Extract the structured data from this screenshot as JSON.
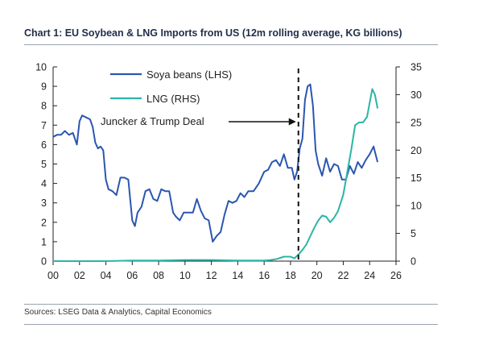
{
  "chart_data": {
    "type": "line",
    "title": "Chart 1: EU Soybean & LNG Imports from US (12m rolling average, KG billions)",
    "source": "Sources: LSEG Data & Analytics, Capital Economics",
    "x_ticks": [
      "00",
      "02",
      "04",
      "06",
      "08",
      "10",
      "12",
      "14",
      "16",
      "18",
      "20",
      "22",
      "24",
      "26"
    ],
    "xlim": [
      2000,
      2026
    ],
    "y_left": {
      "ylim": [
        0,
        10
      ],
      "ticks": [
        "0",
        "1",
        "2",
        "3",
        "4",
        "5",
        "6",
        "7",
        "8",
        "9",
        "10"
      ]
    },
    "y_right": {
      "ylim": [
        0,
        35
      ],
      "ticks": [
        "0",
        "5",
        "10",
        "15",
        "20",
        "25",
        "30",
        "35"
      ]
    },
    "grid": false,
    "legend_position": "top-center",
    "annotation": {
      "text": "Juncker & Trump Deal",
      "x": 2018.6
    },
    "series": [
      {
        "name": "Soya beans (LHS)",
        "axis": "left",
        "color": "#2a56b0",
        "x": [
          2000.0,
          2000.3,
          2000.6,
          2000.9,
          2001.2,
          2001.5,
          2001.8,
          2002.0,
          2002.2,
          2002.5,
          2002.8,
          2003.0,
          2003.2,
          2003.4,
          2003.6,
          2003.8,
          2004.0,
          2004.2,
          2004.5,
          2004.8,
          2005.1,
          2005.4,
          2005.7,
          2006.0,
          2006.2,
          2006.4,
          2006.7,
          2007.0,
          2007.3,
          2007.6,
          2007.9,
          2008.2,
          2008.5,
          2008.8,
          2009.1,
          2009.3,
          2009.6,
          2009.9,
          2010.2,
          2010.6,
          2010.9,
          2011.2,
          2011.5,
          2011.8,
          2012.1,
          2012.4,
          2012.7,
          2013.0,
          2013.3,
          2013.6,
          2013.9,
          2014.2,
          2014.5,
          2014.8,
          2015.2,
          2015.6,
          2016.0,
          2016.3,
          2016.6,
          2016.9,
          2017.2,
          2017.5,
          2017.8,
          2018.1,
          2018.3,
          2018.5,
          2018.7,
          2018.9,
          2019.1,
          2019.3,
          2019.5,
          2019.7,
          2019.9,
          2020.1,
          2020.4,
          2020.7,
          2021.0,
          2021.3,
          2021.6,
          2021.9,
          2022.2,
          2022.5,
          2022.8,
          2023.1,
          2023.4,
          2023.7,
          2024.0,
          2024.3,
          2024.6
        ],
        "values": [
          6.4,
          6.5,
          6.5,
          6.7,
          6.5,
          6.6,
          6.0,
          7.2,
          7.5,
          7.4,
          7.3,
          6.9,
          6.1,
          5.8,
          5.9,
          5.7,
          4.2,
          3.7,
          3.6,
          3.4,
          4.3,
          4.3,
          4.2,
          2.1,
          1.8,
          2.5,
          2.8,
          3.6,
          3.7,
          3.2,
          3.1,
          3.7,
          3.6,
          3.6,
          2.5,
          2.3,
          2.1,
          2.5,
          2.5,
          2.5,
          3.2,
          2.6,
          2.2,
          2.1,
          1.0,
          1.3,
          1.5,
          2.4,
          3.1,
          3.0,
          3.1,
          3.5,
          3.3,
          3.6,
          3.6,
          4.0,
          4.6,
          4.7,
          5.1,
          5.2,
          4.9,
          5.5,
          4.8,
          4.8,
          4.2,
          4.6,
          5.8,
          6.3,
          8.3,
          9.0,
          9.1,
          8.0,
          5.7,
          5.0,
          4.4,
          5.3,
          4.6,
          5.0,
          4.9,
          4.2,
          4.2,
          4.9,
          4.5,
          5.1,
          4.8,
          5.2,
          5.5,
          5.9,
          5.1
        ]
      },
      {
        "name": "LNG (RHS)",
        "axis": "right",
        "color": "#2ab5a5",
        "x": [
          2000.0,
          2002.0,
          2004.0,
          2006.0,
          2008.0,
          2010.0,
          2012.0,
          2014.0,
          2015.0,
          2016.0,
          2016.5,
          2017.0,
          2017.5,
          2018.0,
          2018.3,
          2018.6,
          2018.9,
          2019.2,
          2019.5,
          2019.8,
          2020.1,
          2020.4,
          2020.7,
          2021.0,
          2021.3,
          2021.6,
          2022.0,
          2022.3,
          2022.6,
          2022.9,
          2023.2,
          2023.5,
          2023.8,
          2024.0,
          2024.2,
          2024.4,
          2024.6
        ],
        "values": [
          0,
          0,
          0,
          0.1,
          0.1,
          0.2,
          0.2,
          0.1,
          0.1,
          0.1,
          0.2,
          0.4,
          0.8,
          0.8,
          0.5,
          1.2,
          2.0,
          3.0,
          4.5,
          6.0,
          7.3,
          8.2,
          8.0,
          7.0,
          7.8,
          9.0,
          12.0,
          16.0,
          20.0,
          24.5,
          25.0,
          25.0,
          26.0,
          28.5,
          31.0,
          30.0,
          27.5
        ]
      }
    ]
  }
}
